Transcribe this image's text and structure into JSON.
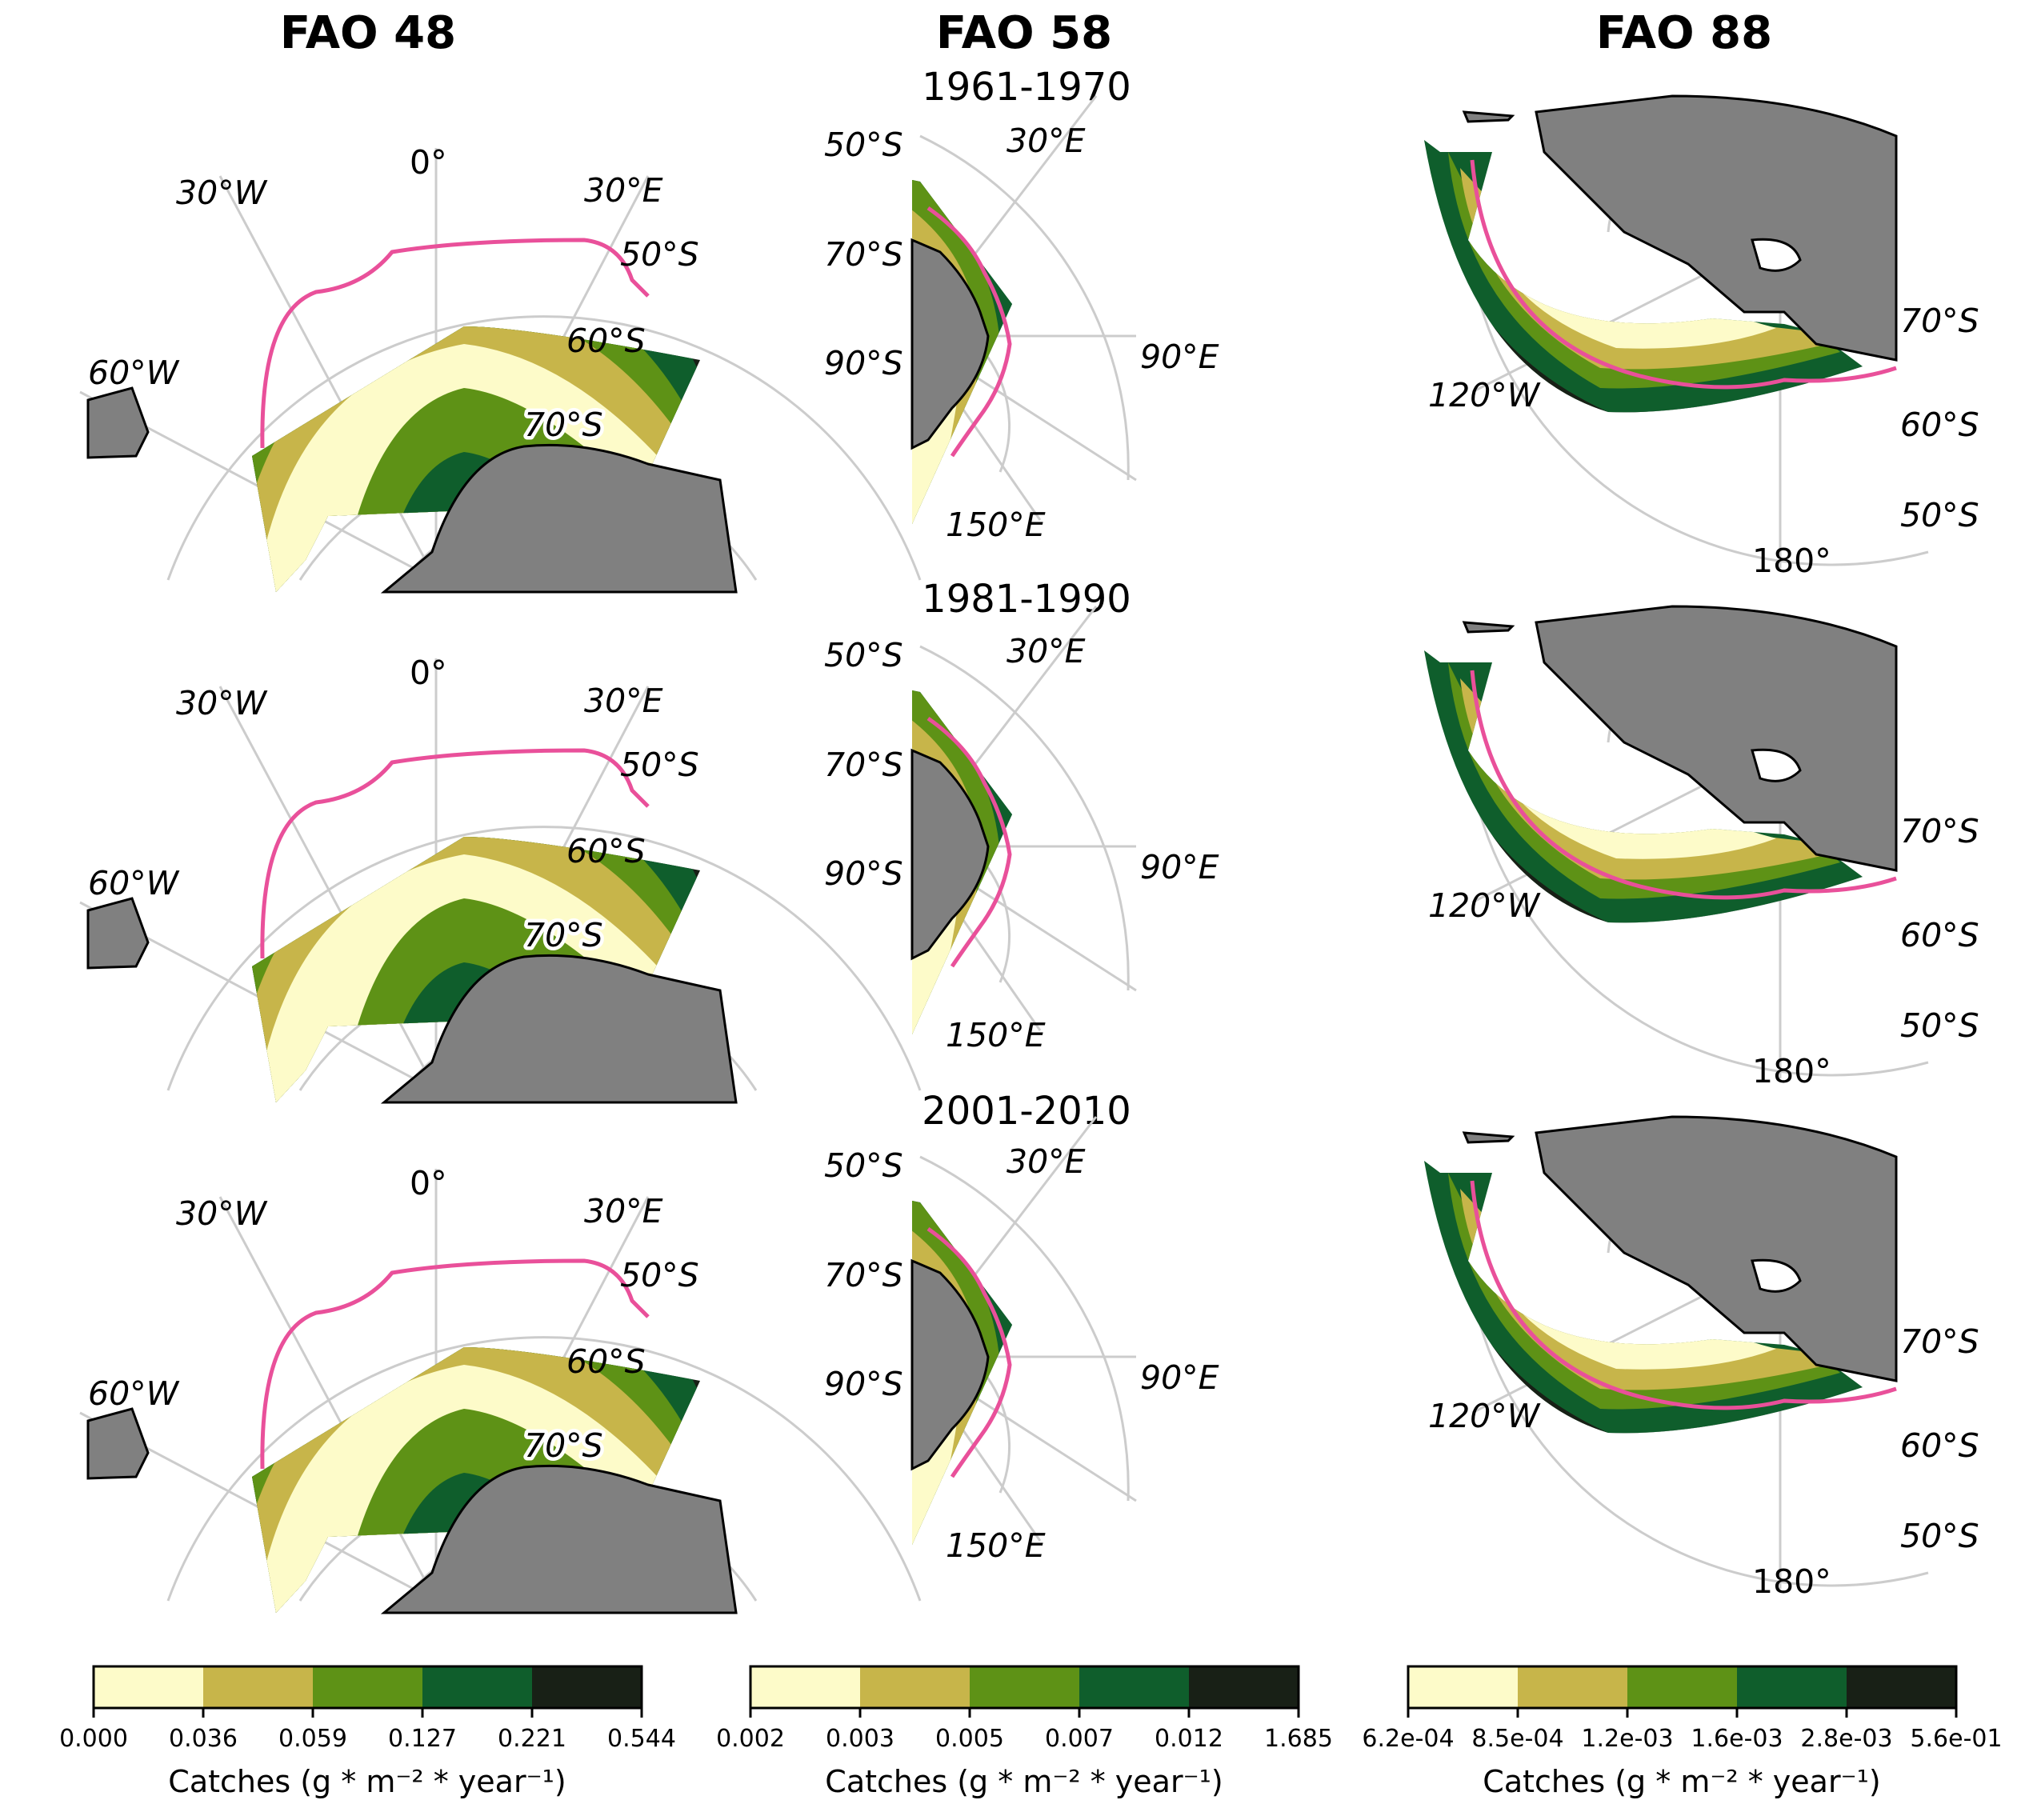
{
  "columns": [
    {
      "title": "FAO 48",
      "labels": [
        "0°",
        "30°W",
        "30°E",
        "50°S",
        "60°S",
        "60°W",
        "70°S"
      ],
      "colorbar": {
        "ticks": [
          "0.000",
          "0.036",
          "0.059",
          "0.127",
          "0.221",
          "0.544"
        ],
        "label": "Catches (g * m⁻² * year⁻¹)"
      }
    },
    {
      "title": "FAO 58",
      "labels": [
        "50°S",
        "30°E",
        "70°S",
        "90°S",
        "90°E",
        "150°E"
      ],
      "colorbar": {
        "ticks": [
          "0.002",
          "0.003",
          "0.005",
          "0.007",
          "0.012",
          "1.685"
        ],
        "label": "Catches (g * m⁻² * year⁻¹)"
      }
    },
    {
      "title": "FAO 88",
      "labels": [
        "70°S",
        "120°W",
        "60°S",
        "50°S",
        "180°"
      ],
      "colorbar": {
        "ticks": [
          "6.2e-04",
          "8.5e-04",
          "1.2e-03",
          "1.6e-03",
          "2.8e-03",
          "5.6e-01"
        ],
        "label": "Catches (g * m⁻² * year⁻¹)"
      }
    }
  ],
  "rows": [
    "1961-1970",
    "1981-1990",
    "2001-2010"
  ],
  "colors": {
    "bins": [
      "#fdfbc9",
      "#c7b54a",
      "#5e9216",
      "#0f5e2c",
      "#182016"
    ],
    "land": "#808080",
    "front_line": "#e9509a",
    "graticule": "#cccccc"
  }
}
